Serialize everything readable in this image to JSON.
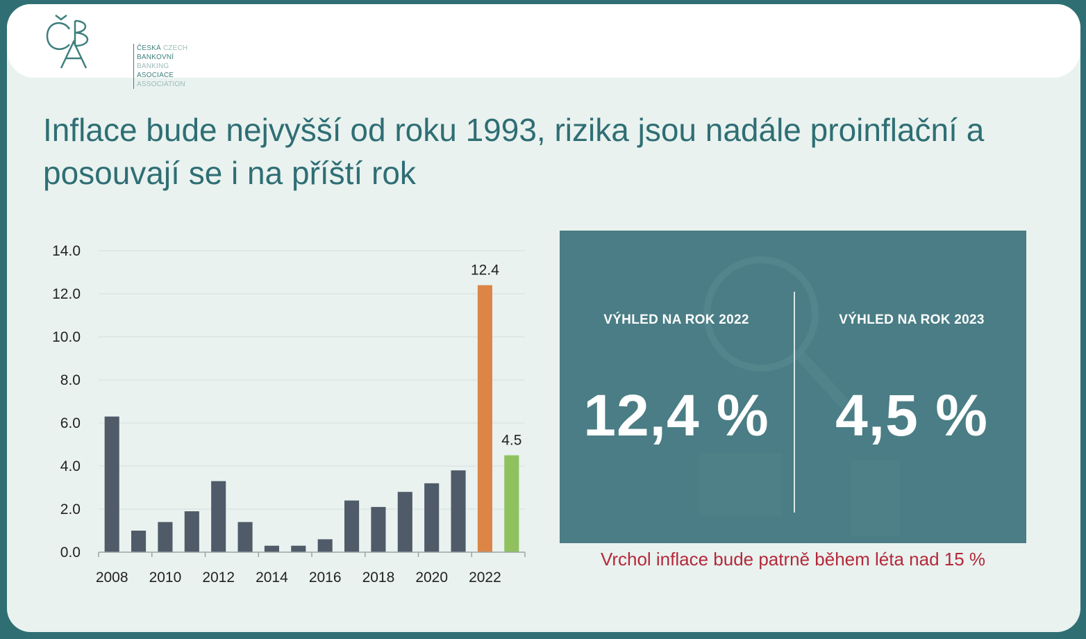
{
  "logo": {
    "monogram": "ČBA",
    "lines": [
      {
        "cs": "ČESKÁ",
        "en": "CZECH"
      },
      {
        "cs": "BANKOVNÍ",
        "en": "BANKING"
      },
      {
        "cs": "ASOCIACE",
        "en": "ASSOCIATION"
      }
    ]
  },
  "slide": {
    "title": "Inflace bude nejvyšší od roku 1993, rizika jsou nadále proinflační a posouvají se i na příští rok"
  },
  "chart_data": {
    "type": "bar",
    "categories": [
      "2008",
      "2009",
      "2010",
      "2011",
      "2012",
      "2013",
      "2014",
      "2015",
      "2016",
      "2017",
      "2018",
      "2019",
      "2020",
      "2021",
      "2022",
      "2023"
    ],
    "values": [
      6.3,
      1.0,
      1.4,
      1.9,
      3.3,
      1.4,
      0.3,
      0.3,
      0.6,
      2.4,
      2.1,
      2.8,
      3.2,
      3.8,
      12.4,
      4.5
    ],
    "x_tick_labels": [
      "2008",
      "2010",
      "2012",
      "2014",
      "2016",
      "2018",
      "2020",
      "2022"
    ],
    "y_tick_labels": [
      "0.0",
      "2.0",
      "4.0",
      "6.0",
      "8.0",
      "10.0",
      "12.0",
      "14.0"
    ],
    "ylim": [
      0,
      14
    ],
    "data_labels": [
      {
        "category": "2022",
        "text": "12.4"
      },
      {
        "category": "2023",
        "text": "4.5"
      }
    ],
    "colors": {
      "default": "#4f5b69",
      "2022": "#dc8546",
      "2023": "#8fc15f"
    },
    "grid": true,
    "title": "",
    "xlabel": "",
    "ylabel": ""
  },
  "outlook": {
    "left": {
      "label": "VÝHLED NA ROK 2022",
      "value": "12,4 %"
    },
    "right": {
      "label": "VÝHLED NA ROK 2023",
      "value": "4,5 %"
    }
  },
  "note": "Vrchol inflace bude patrně během léta nad 15 %",
  "colors": {
    "title": "#2f6e74",
    "panel": "#4a7d85",
    "note": "#b5283a",
    "frame": "#2f6f73"
  }
}
